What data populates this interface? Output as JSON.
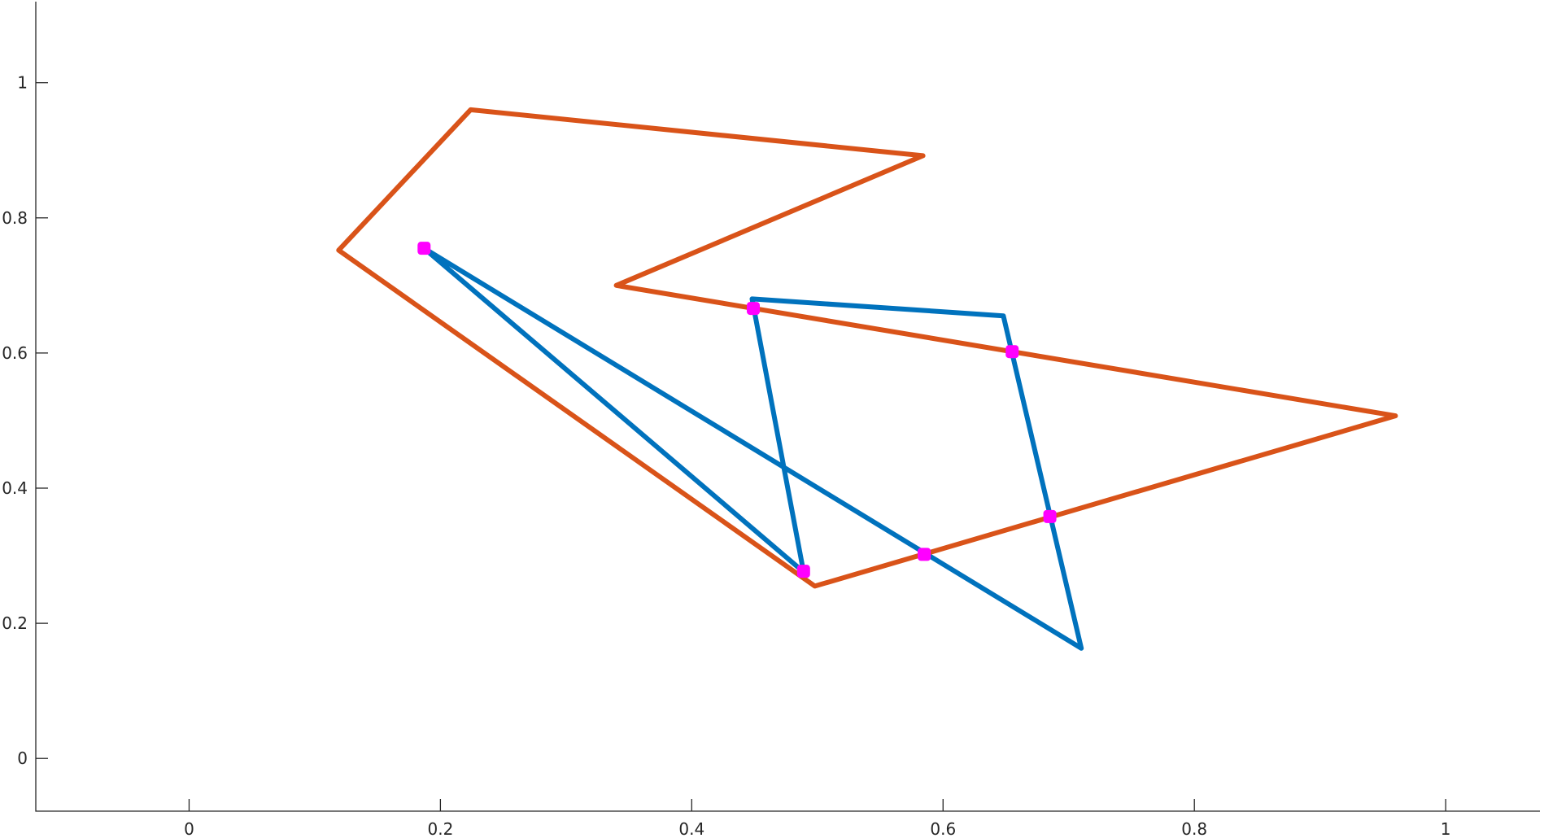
{
  "chart_data": {
    "type": "line",
    "title": "",
    "xlabel": "",
    "ylabel": "",
    "xlim": [
      -0.122,
      1.075
    ],
    "ylim": [
      -0.078,
      1.12
    ],
    "xticks": [
      0,
      0.2,
      0.4,
      0.6,
      0.8,
      1
    ],
    "xtick_labels": [
      "0",
      "0.2",
      "0.4",
      "0.6",
      "0.8",
      "1"
    ],
    "yticks": [
      0,
      0.2,
      0.4,
      0.6,
      0.8,
      1
    ],
    "ytick_labels": [
      "0",
      "0.2",
      "0.4",
      "0.6",
      "0.8",
      "1"
    ],
    "grid": false,
    "legend": "none",
    "series": [
      {
        "color": "#0072BD",
        "kind": "line",
        "x": [
          0.448,
          0.648,
          0.71,
          0.187,
          0.489,
          0.448
        ],
        "y": [
          0.68,
          0.655,
          0.163,
          0.755,
          0.276,
          0.68
        ]
      },
      {
        "color": "#D95319",
        "kind": "line",
        "x": [
          0.224,
          0.584,
          0.34,
          0.96,
          0.498,
          0.119,
          0.224
        ],
        "y": [
          0.96,
          0.892,
          0.7,
          0.507,
          0.255,
          0.752,
          0.96
        ]
      },
      {
        "color": "#FF00FF",
        "kind": "markers",
        "x": [
          0.187,
          0.449,
          0.655,
          0.489,
          0.585,
          0.685
        ],
        "y": [
          0.755,
          0.666,
          0.602,
          0.277,
          0.302,
          0.358
        ]
      }
    ]
  }
}
